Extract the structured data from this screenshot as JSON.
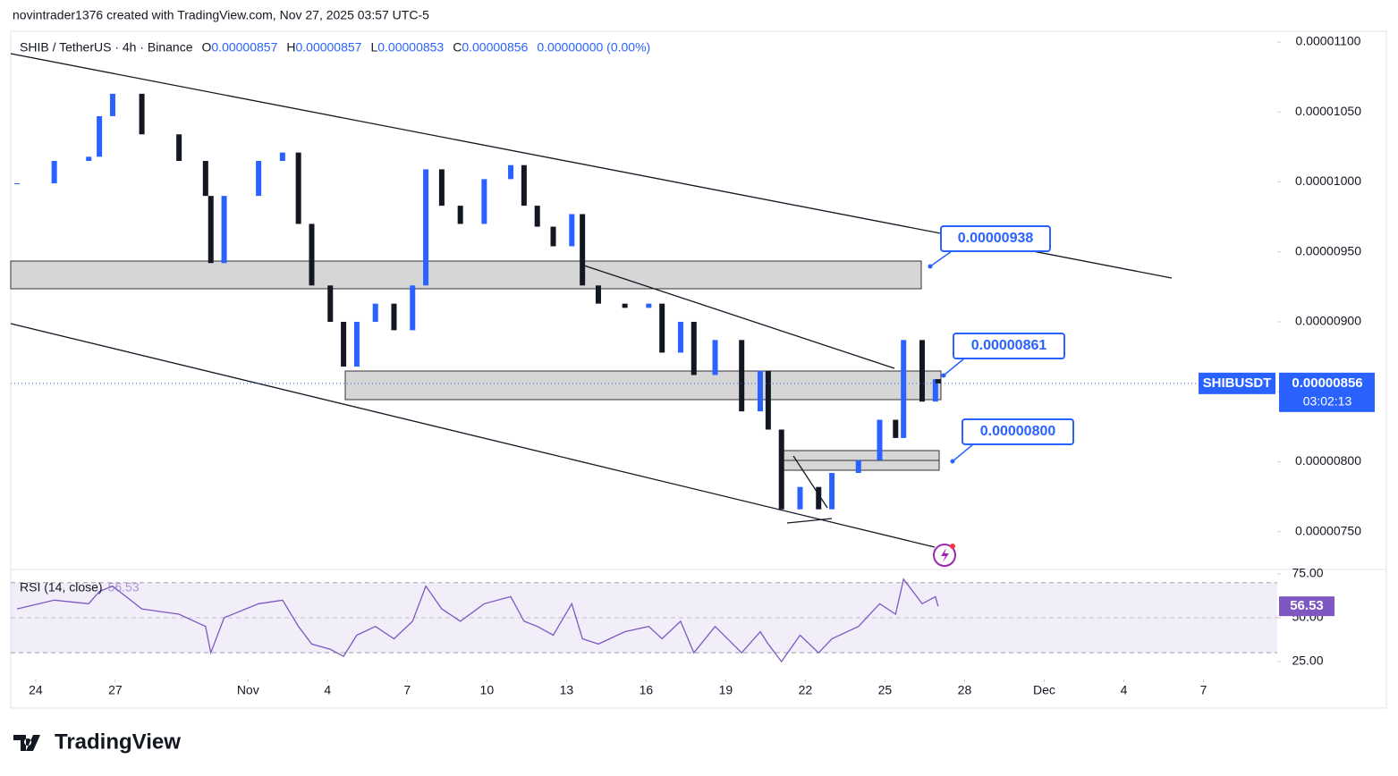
{
  "header": "novintrader1376 created with TradingView.com, Nov 27, 2025 03:57 UTC-5",
  "brand": "TradingView",
  "chart_data": {
    "type": "candlestick",
    "title": "SHIB / TetherUS · 4h · Binance",
    "legend": [
      {
        "key": "O",
        "value": 8.57e-06,
        "label": "0.00000857"
      },
      {
        "key": "H",
        "value": 8.57e-06,
        "label": "0.00000857"
      },
      {
        "key": "L",
        "value": 8.53e-06,
        "label": "0.00000853"
      },
      {
        "key": "C",
        "value": 8.56e-06,
        "label": "0.00000856"
      },
      {
        "key": "",
        "value": 0,
        "label": "0.00000000 (0.00%)"
      }
    ],
    "up_color": "#2962ff",
    "down_color": "#131722",
    "x": [
      -0.7,
      0.7,
      2.0,
      2.4,
      2.9,
      4.0,
      5.4,
      6.4,
      6.6,
      7.1,
      8.4,
      9.3,
      9.9,
      10.4,
      11.1,
      11.6,
      12.1,
      12.8,
      13.5,
      14.2,
      14.7,
      15.3,
      16.0,
      16.9,
      17.9,
      18.4,
      18.9,
      19.5,
      20.2,
      20.6,
      21.2,
      22.2,
      23.1,
      23.6,
      24.3,
      24.8,
      25.6,
      26.6,
      27.3,
      27.6,
      28.1,
      28.8,
      29.5,
      30.0,
      31.0,
      31.8,
      32.4,
      32.7,
      33.4,
      33.9,
      34.0
    ],
    "close": [
      9.99e-06,
      1.015e-05,
      1.018e-05,
      1.047e-05,
      1.063e-05,
      1.034e-05,
      1.015e-05,
      9.9e-06,
      9.42e-06,
      9.9e-06,
      1.015e-05,
      1.021e-05,
      9.7e-06,
      9.26e-06,
      9e-06,
      8.68e-06,
      9e-06,
      9.13e-06,
      8.94e-06,
      9.26e-06,
      1.009e-05,
      9.83e-06,
      9.7e-06,
      1.002e-05,
      1.012e-05,
      9.83e-06,
      9.68e-06,
      9.54e-06,
      9.77e-06,
      9.26e-06,
      9.13e-06,
      9.1e-06,
      9.13e-06,
      8.78e-06,
      9e-06,
      8.62e-06,
      8.87e-06,
      8.36e-06,
      8.65e-06,
      8.23e-06,
      7.66e-06,
      7.82e-06,
      7.66e-06,
      7.92e-06,
      8.01e-06,
      8.3e-06,
      8.17e-06,
      8.87e-06,
      8.43e-06,
      8.59e-06,
      8.56e-06
    ],
    "xlim": [
      -0.94,
      46.78
    ],
    "xticks": [
      {
        "value": 0,
        "label": "24"
      },
      {
        "value": 3,
        "label": "27"
      },
      {
        "value": 8,
        "label": "Nov"
      },
      {
        "value": 11,
        "label": "4"
      },
      {
        "value": 14,
        "label": "7"
      },
      {
        "value": 17,
        "label": "10"
      },
      {
        "value": 20,
        "label": "13"
      },
      {
        "value": 23,
        "label": "16"
      },
      {
        "value": 26,
        "label": "19"
      },
      {
        "value": 29,
        "label": "22"
      },
      {
        "value": 32,
        "label": "25"
      },
      {
        "value": 35,
        "label": "28"
      },
      {
        "value": 38,
        "label": "Dec"
      },
      {
        "value": 41,
        "label": "4"
      },
      {
        "value": 44,
        "label": "7"
      }
    ],
    "ylim": [
      7.23e-06,
      1.10766e-05
    ],
    "yticks": [
      {
        "value": 1.1e-05,
        "label": "0.00001100"
      },
      {
        "value": 1.05e-05,
        "label": "0.00001050"
      },
      {
        "value": 1e-05,
        "label": "0.00001000"
      },
      {
        "value": 9.5e-06,
        "label": "0.00000950"
      },
      {
        "value": 9e-06,
        "label": "0.00000900"
      },
      {
        "value": 8.5e-06,
        "label": "0.00000850"
      },
      {
        "value": 8e-06,
        "label": "0.00000800"
      },
      {
        "value": 7.5e-06,
        "label": "0.00000750"
      }
    ],
    "annotations": [
      {
        "value": 9.38e-06,
        "label": "0.00000938"
      },
      {
        "value": 8.61e-06,
        "label": "0.00000861"
      },
      {
        "value": 8e-06,
        "label": "0.00000800"
      }
    ],
    "last_price": {
      "symbol": "SHIBUSDT",
      "value": 8.56e-06,
      "label": "0.00000856",
      "countdown": "03:02:13",
      "color": "#2962ff"
    },
    "rsi": {
      "title": "RSI (14, close)",
      "last": {
        "value": 56.53,
        "label": "56.53"
      },
      "color": "#7e57c2",
      "values": [
        55,
        60,
        58,
        65,
        68,
        55,
        52,
        45,
        30,
        50,
        58,
        60,
        45,
        35,
        32,
        28,
        40,
        45,
        38,
        48,
        68,
        55,
        48,
        58,
        62,
        48,
        45,
        40,
        58,
        38,
        35,
        42,
        45,
        38,
        48,
        30,
        45,
        30,
        42,
        35,
        25,
        40,
        30,
        38,
        45,
        58,
        52,
        72,
        58,
        62,
        56.53
      ],
      "ylim": [
        15.8,
        77
      ],
      "yticks": [
        {
          "value": 75,
          "label": "75.00"
        },
        {
          "value": 50,
          "label": "50.00"
        },
        {
          "value": 25,
          "label": "25.00"
        }
      ],
      "bands": [
        70,
        50,
        30
      ]
    }
  }
}
